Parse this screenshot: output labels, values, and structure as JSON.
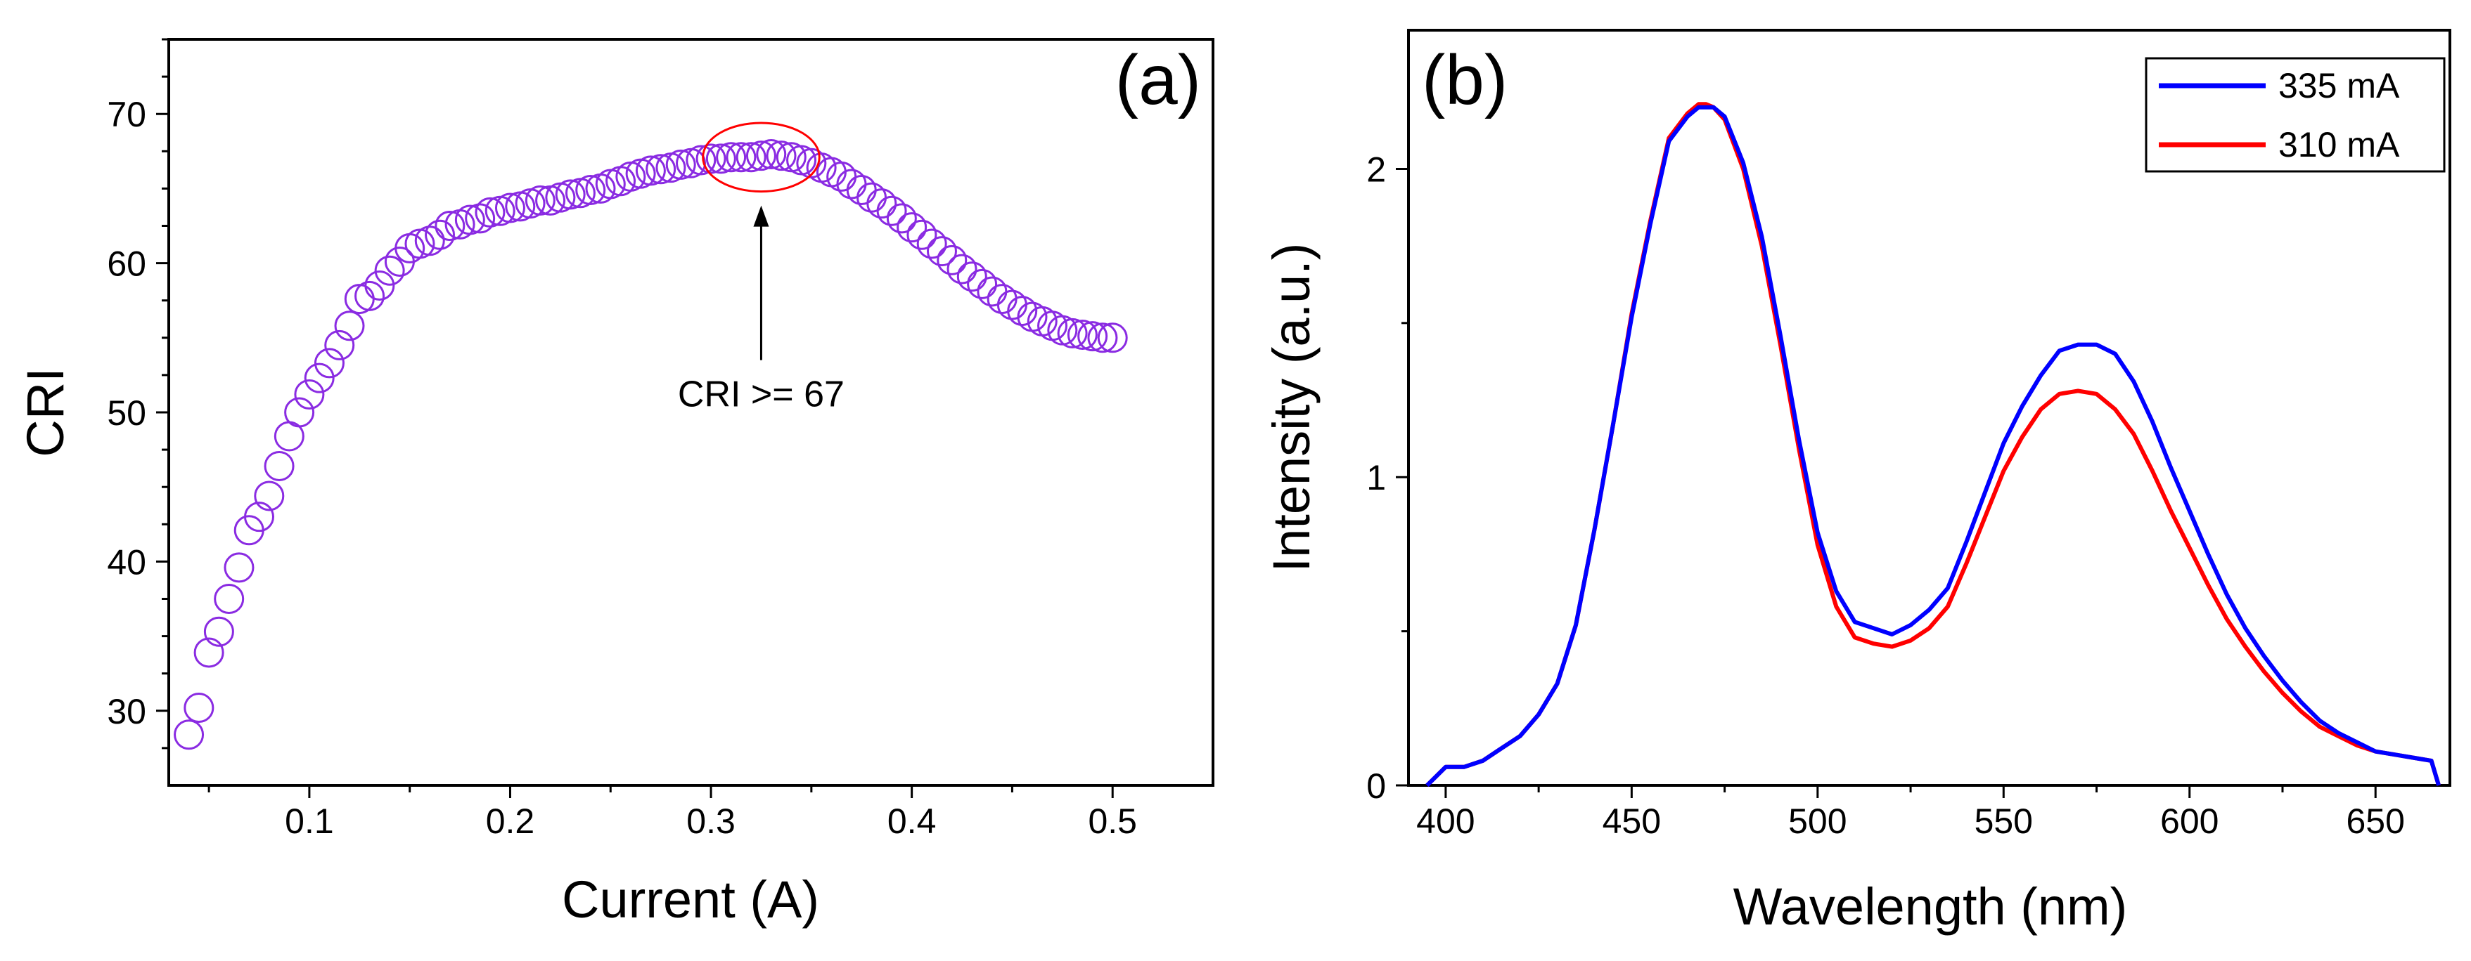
{
  "chart_data": [
    {
      "type": "scatter",
      "panel_label": "(a)",
      "xlabel": "Current (A)",
      "ylabel": "CRI",
      "xlim": [
        0.03,
        0.55
      ],
      "ylim": [
        25,
        75
      ],
      "xticks": [
        0.1,
        0.2,
        0.3,
        0.4,
        0.5
      ],
      "xtick_labels": [
        "0.1",
        "0.2",
        "0.3",
        "0.4",
        "0.5"
      ],
      "yticks": [
        30,
        40,
        50,
        60,
        70
      ],
      "ytick_labels": [
        "30",
        "40",
        "50",
        "60",
        "70"
      ],
      "marker_color": "#8a2be2",
      "highlight_color": "#ff0000",
      "annotation": {
        "text": "CRI >= 67",
        "x": 0.325,
        "y": 67,
        "ellipse_x_range": [
          0.296,
          0.354
        ],
        "ellipse_y_range": [
          64.8,
          69.4
        ]
      },
      "series": [
        {
          "name": "CRI",
          "x": [
            0.04,
            0.045,
            0.05,
            0.055,
            0.06,
            0.065,
            0.07,
            0.075,
            0.08,
            0.085,
            0.09,
            0.095,
            0.1,
            0.105,
            0.11,
            0.115,
            0.12,
            0.125,
            0.13,
            0.135,
            0.14,
            0.145,
            0.15,
            0.155,
            0.16,
            0.165,
            0.17,
            0.175,
            0.18,
            0.185,
            0.19,
            0.195,
            0.2,
            0.205,
            0.21,
            0.215,
            0.22,
            0.225,
            0.23,
            0.235,
            0.24,
            0.245,
            0.25,
            0.255,
            0.26,
            0.265,
            0.27,
            0.275,
            0.28,
            0.285,
            0.29,
            0.295,
            0.3,
            0.305,
            0.31,
            0.315,
            0.32,
            0.325,
            0.33,
            0.335,
            0.34,
            0.345,
            0.35,
            0.355,
            0.36,
            0.365,
            0.37,
            0.375,
            0.38,
            0.385,
            0.39,
            0.395,
            0.4,
            0.405,
            0.41,
            0.415,
            0.42,
            0.425,
            0.43,
            0.435,
            0.44,
            0.445,
            0.45,
            0.455,
            0.46,
            0.465,
            0.47,
            0.475,
            0.48,
            0.485,
            0.49,
            0.495,
            0.5
          ],
          "y": [
            28.4,
            30.2,
            33.9,
            35.3,
            37.5,
            39.6,
            42.1,
            43.0,
            44.4,
            46.4,
            48.4,
            50.0,
            51.2,
            52.3,
            53.3,
            54.5,
            55.8,
            57.6,
            57.8,
            58.5,
            59.5,
            60.1,
            61.0,
            61.3,
            61.5,
            61.9,
            62.5,
            62.6,
            62.9,
            63.0,
            63.4,
            63.5,
            63.7,
            63.8,
            64.0,
            64.2,
            64.2,
            64.4,
            64.6,
            64.7,
            64.9,
            65.0,
            65.3,
            65.5,
            65.8,
            66.0,
            66.2,
            66.3,
            66.4,
            66.6,
            66.7,
            66.9,
            67.0,
            67.0,
            67.1,
            67.1,
            67.1,
            67.2,
            67.3,
            67.2,
            67.1,
            66.9,
            66.7,
            66.4,
            66.1,
            65.8,
            65.3,
            64.9,
            64.4,
            64.0,
            63.5,
            63.0,
            62.4,
            61.9,
            61.3,
            60.8,
            60.2,
            59.6,
            59.1,
            58.6,
            58.1,
            57.6,
            57.2,
            56.8,
            56.4,
            56.1,
            55.8,
            55.5,
            55.3,
            55.2,
            55.1,
            55.0,
            55.0
          ]
        }
      ]
    },
    {
      "type": "line",
      "panel_label": "(b)",
      "xlabel": "Wavelength (nm)",
      "ylabel": "Intensity (a.u.)",
      "xlim": [
        390,
        670
      ],
      "ylim": [
        0,
        2.45
      ],
      "xticks": [
        400,
        450,
        500,
        550,
        600,
        650
      ],
      "xtick_labels": [
        "400",
        "450",
        "500",
        "550",
        "600",
        "650"
      ],
      "yticks": [
        0,
        1,
        2
      ],
      "ytick_labels": [
        "0",
        "1",
        "2"
      ],
      "legend_position": "top-right",
      "series": [
        {
          "name": "335 mA",
          "color": "#0000ff",
          "x": [
            395,
            400,
            405,
            410,
            415,
            420,
            425,
            430,
            435,
            440,
            445,
            450,
            455,
            460,
            465,
            468,
            470,
            472,
            475,
            480,
            485,
            490,
            495,
            500,
            505,
            510,
            515,
            520,
            525,
            530,
            535,
            540,
            545,
            550,
            555,
            560,
            565,
            570,
            575,
            580,
            585,
            590,
            595,
            600,
            605,
            610,
            615,
            620,
            625,
            630,
            635,
            640,
            645,
            650,
            655,
            660,
            665,
            667
          ],
          "y": [
            0,
            0.06,
            0.06,
            0.08,
            0.12,
            0.16,
            0.23,
            0.33,
            0.52,
            0.83,
            1.17,
            1.52,
            1.82,
            2.09,
            2.17,
            2.2,
            2.2,
            2.2,
            2.17,
            2.02,
            1.78,
            1.46,
            1.12,
            0.82,
            0.63,
            0.53,
            0.51,
            0.49,
            0.52,
            0.57,
            0.64,
            0.79,
            0.95,
            1.11,
            1.23,
            1.33,
            1.41,
            1.43,
            1.43,
            1.4,
            1.31,
            1.18,
            1.03,
            0.89,
            0.75,
            0.62,
            0.51,
            0.42,
            0.34,
            0.27,
            0.21,
            0.17,
            0.14,
            0.11,
            0.1,
            0.09,
            0.08,
            0
          ]
        },
        {
          "name": "310 mA",
          "color": "#ff0000",
          "x": [
            395,
            400,
            405,
            410,
            415,
            420,
            425,
            430,
            435,
            440,
            445,
            450,
            455,
            460,
            465,
            468,
            470,
            472,
            475,
            480,
            485,
            490,
            495,
            500,
            505,
            510,
            515,
            520,
            525,
            530,
            535,
            540,
            545,
            550,
            555,
            560,
            565,
            570,
            575,
            580,
            585,
            590,
            595,
            600,
            605,
            610,
            615,
            620,
            625,
            630,
            635,
            640,
            645,
            650,
            655,
            660,
            665,
            667
          ],
          "y": [
            0,
            0.06,
            0.06,
            0.08,
            0.12,
            0.16,
            0.23,
            0.33,
            0.52,
            0.83,
            1.17,
            1.53,
            1.83,
            2.1,
            2.18,
            2.21,
            2.21,
            2.2,
            2.16,
            2.0,
            1.75,
            1.43,
            1.09,
            0.78,
            0.58,
            0.48,
            0.46,
            0.45,
            0.47,
            0.51,
            0.58,
            0.72,
            0.87,
            1.02,
            1.13,
            1.22,
            1.27,
            1.28,
            1.27,
            1.22,
            1.14,
            1.02,
            0.89,
            0.77,
            0.65,
            0.54,
            0.45,
            0.37,
            0.3,
            0.24,
            0.19,
            0.16,
            0.13,
            0.11,
            0.1,
            0.09,
            0.08,
            0
          ]
        }
      ]
    }
  ]
}
